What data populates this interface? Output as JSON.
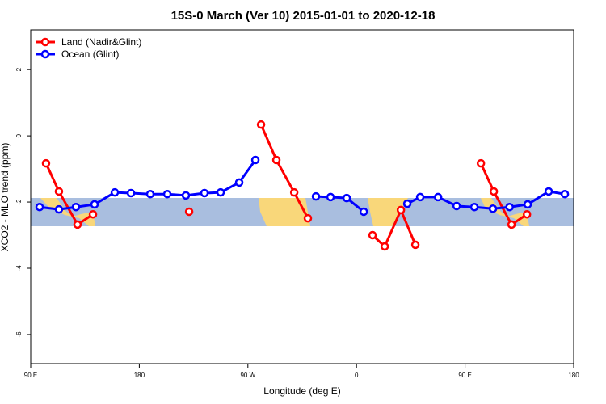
{
  "chart_data": {
    "type": "line",
    "title": "15S-0 March (Ver 10)   2015-01-01 to 2020-12-18",
    "xlabel": "Longitude (deg E)",
    "ylabel": "XCO2 - MLO trend (ppm)",
    "xlim": [
      90,
      540
    ],
    "ylim": [
      -6.88,
      3.2
    ],
    "xticks": [
      {
        "value": 90,
        "label": "90 E"
      },
      180,
      {
        "value": 270,
        "label": "90 W"
      },
      {
        "value": 360,
        "label": "0"
      },
      {
        "value": 450,
        "label": "90 E"
      },
      {
        "value": 540,
        "label": "180"
      }
    ],
    "yticks": [
      -6,
      -4,
      -2,
      0,
      2
    ],
    "legend": "top-left",
    "series": [
      {
        "name": "Land (Nadir&Glint)",
        "color": "#ff0000",
        "x": [
          102.7,
          113.4,
          128.8,
          141.6,
          null,
          221.3,
          null,
          280.9,
          293.6,
          308.4,
          319.7,
          null,
          373.3,
          383.4,
          396.8,
          408.8,
          null,
          463.1,
          473.8,
          488.5,
          501.3
        ],
        "values": [
          -0.83,
          -1.68,
          -2.68,
          -2.37,
          null,
          -2.29,
          null,
          0.34,
          -0.73,
          -1.71,
          -2.49,
          null,
          -3.0,
          -3.34,
          -2.24,
          -3.29,
          null,
          -0.83,
          -1.68,
          -2.68,
          -2.37
        ]
      },
      {
        "name": "Ocean (Glint)",
        "color": "#0000ff",
        "x": [
          97.4,
          113.4,
          127.5,
          142.9,
          159.7,
          173.1,
          189.1,
          203.2,
          218.6,
          234.0,
          247.4,
          262.8,
          276.2,
          null,
          326.4,
          338.5,
          351.9,
          366.0,
          null,
          402.1,
          412.8,
          427.6,
          443.0,
          457.7,
          473.1,
          486.9,
          501.9,
          519.3,
          532.7
        ],
        "values": [
          -2.15,
          -2.22,
          -2.15,
          -2.07,
          -1.71,
          -1.73,
          -1.76,
          -1.76,
          -1.8,
          -1.73,
          -1.71,
          -1.41,
          -0.73,
          null,
          -1.83,
          -1.85,
          -1.88,
          -2.29,
          null,
          -2.05,
          -1.85,
          -1.85,
          -2.12,
          -2.15,
          -2.2,
          -2.15,
          -2.07,
          -1.68,
          -1.76
        ]
      }
    ]
  }
}
